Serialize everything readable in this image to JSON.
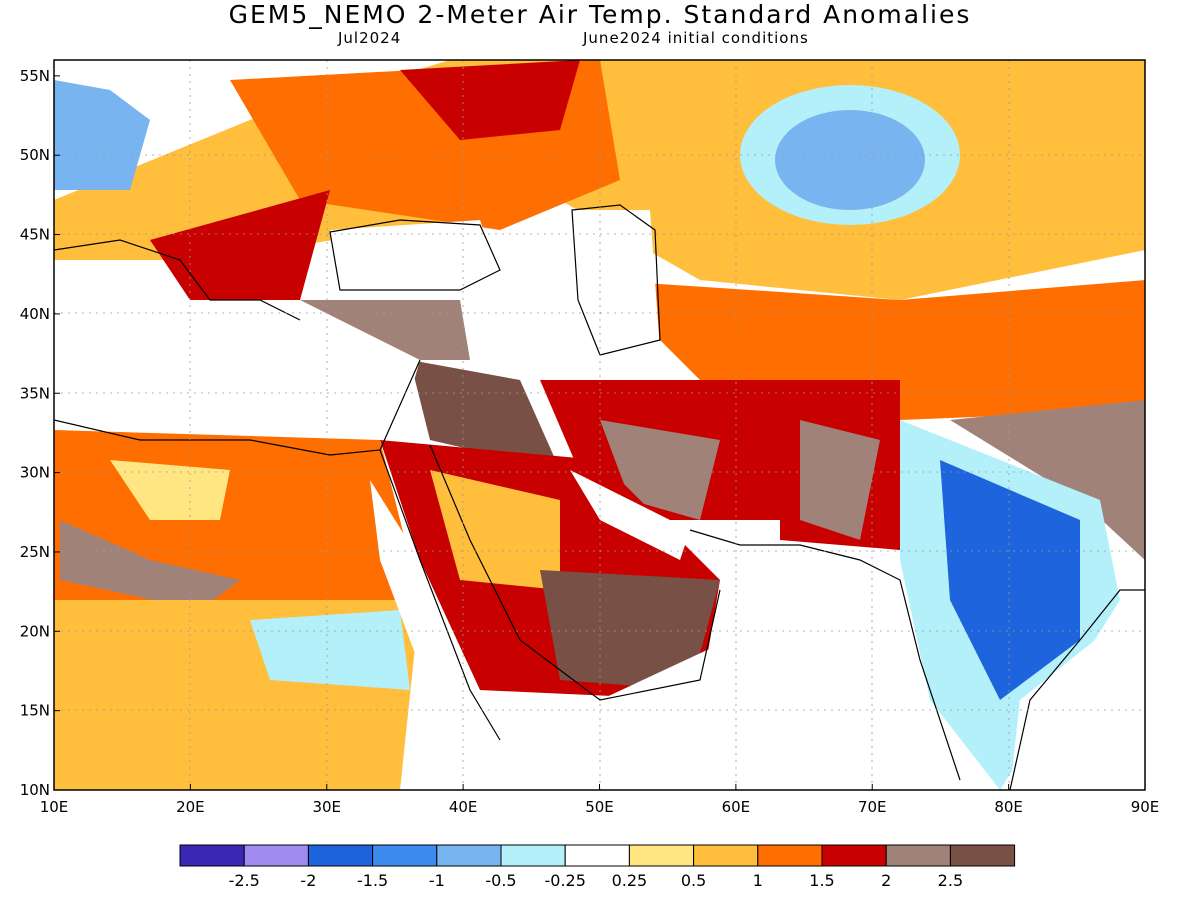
{
  "header": {
    "title": "GEM5_NEMO 2-Meter Air Temp. Standard Anomalies",
    "valid_month": "Jul2024",
    "init": "June2024 initial conditions"
  },
  "axes": {
    "lat_labels": [
      "55N",
      "50N",
      "45N",
      "40N",
      "35N",
      "30N",
      "25N",
      "20N",
      "15N",
      "10N"
    ],
    "lon_labels": [
      "10E",
      "20E",
      "30E",
      "40E",
      "50E",
      "60E",
      "70E",
      "80E",
      "90E"
    ],
    "lat_range": [
      10,
      56
    ],
    "lon_range": [
      10,
      90
    ]
  },
  "colorbar": {
    "colors": [
      "#3a28b4",
      "#a08cf0",
      "#1e64dc",
      "#3c8cf0",
      "#78b4f0",
      "#b4f0fa",
      "#ffffff",
      "#ffe682",
      "#ffbe3c",
      "#ff6e00",
      "#c80000",
      "#a08278",
      "#785046"
    ],
    "labels": [
      "-2.5",
      "-2",
      "-1.5",
      "-1",
      "-0.5",
      "-0.25",
      "0.25",
      "0.5",
      "1",
      "1.5",
      "2",
      "2.5"
    ]
  },
  "regions": [
    {
      "name": "west-turkey-warm",
      "color": "#ffbe3c"
    },
    {
      "name": "siberia-west-warm",
      "color": "#ff6e00"
    },
    {
      "name": "kazakh-cold",
      "color": "#78b4f0"
    },
    {
      "name": "arabia-hot",
      "color": "#785046"
    },
    {
      "name": "india-cold",
      "color": "#1e64dc"
    },
    {
      "name": "sahara-warm",
      "color": "#ff6e00"
    }
  ]
}
